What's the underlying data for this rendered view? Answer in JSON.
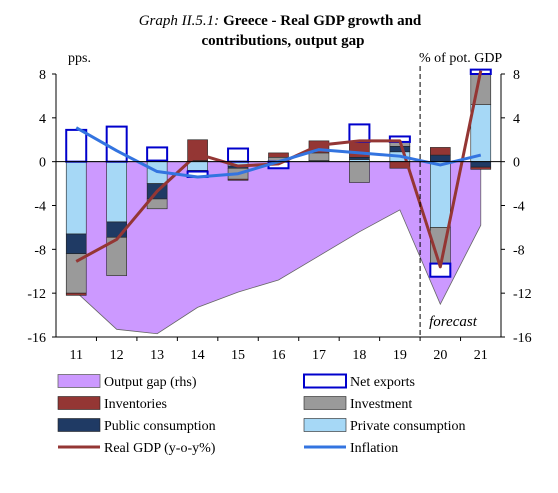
{
  "chart_data": {
    "type": "bar",
    "title_prefix": "Graph II.5.1:",
    "title_line1": "Greece - Real GDP growth and",
    "title_line2": "contributions, output gap",
    "ylabel_left": "pps.",
    "ylabel_right": "% of pot. GDP",
    "forecast_label": "forecast",
    "forecast_start_after": "19",
    "categories": [
      "11",
      "12",
      "13",
      "14",
      "15",
      "16",
      "17",
      "18",
      "19",
      "20",
      "21"
    ],
    "ylim": [
      -16,
      8
    ],
    "yticks": [
      8,
      4,
      0,
      -4,
      -8,
      -12,
      -16
    ],
    "grid": false,
    "legend_position": "bottom",
    "stack_series": [
      {
        "name": "Private consumption",
        "key": "private",
        "color": "#a6d8f6",
        "values": [
          -6.6,
          -5.5,
          -2.0,
          -0.8,
          -0.4,
          0.0,
          0.1,
          0.2,
          0.9,
          -6.0,
          5.2
        ]
      },
      {
        "name": "Public consumption",
        "key": "public",
        "color": "#1f3a64",
        "values": [
          -1.8,
          -1.4,
          -1.4,
          -0.1,
          -0.2,
          0.0,
          0.0,
          0.2,
          0.5,
          0.6,
          -0.5
        ]
      },
      {
        "name": "Investment",
        "key": "investment",
        "color": "#9a9a9a",
        "values": [
          -3.6,
          -3.5,
          -0.9,
          0.1,
          -1.0,
          0.4,
          0.7,
          -1.9,
          0.4,
          -3.3,
          2.8
        ]
      },
      {
        "name": "Inventories",
        "key": "inventories",
        "color": "#943634",
        "values": [
          -0.2,
          0.0,
          0.1,
          1.9,
          -0.1,
          0.4,
          1.1,
          1.4,
          -0.6,
          0.7,
          -0.2
        ]
      },
      {
        "name": "Net exports",
        "key": "netexports",
        "color": "#ffffff",
        "border": "#0000cc",
        "values": [
          2.9,
          3.2,
          1.2,
          -0.5,
          1.2,
          -0.6,
          0.0,
          1.6,
          0.5,
          -1.2,
          0.4
        ]
      }
    ],
    "output_gap": {
      "name": "Output gap (rhs)",
      "color": "#cc99ff",
      "border": "#666666",
      "values": [
        -11.9,
        -15.3,
        -15.7,
        -13.3,
        -11.9,
        -10.8,
        -8.6,
        -6.4,
        -4.4,
        -13.0,
        -5.8
      ]
    },
    "real_gdp": {
      "name": "Real GDP (y-o-y%)",
      "color": "#943634",
      "values": [
        -9.1,
        -7.1,
        -2.7,
        0.7,
        -0.4,
        -0.2,
        1.5,
        1.9,
        1.9,
        -9.6,
        8.3
      ]
    },
    "inflation": {
      "name": "Inflation",
      "color": "#3374e0",
      "values": [
        3.1,
        1.0,
        -0.9,
        -1.4,
        -1.1,
        0.0,
        1.1,
        0.8,
        0.5,
        -0.3,
        0.6
      ]
    },
    "legend": [
      {
        "key": "output_gap",
        "label": "Output gap (rhs)"
      },
      {
        "key": "netexports",
        "label": "Net exports"
      },
      {
        "key": "inventories",
        "label": "Inventories"
      },
      {
        "key": "investment",
        "label": "Investment"
      },
      {
        "key": "public",
        "label": "Public consumption"
      },
      {
        "key": "private",
        "label": "Private consumption"
      },
      {
        "key": "real_gdp",
        "label": "Real GDP (y-o-y%)"
      },
      {
        "key": "inflation",
        "label": "Inflation"
      }
    ]
  }
}
